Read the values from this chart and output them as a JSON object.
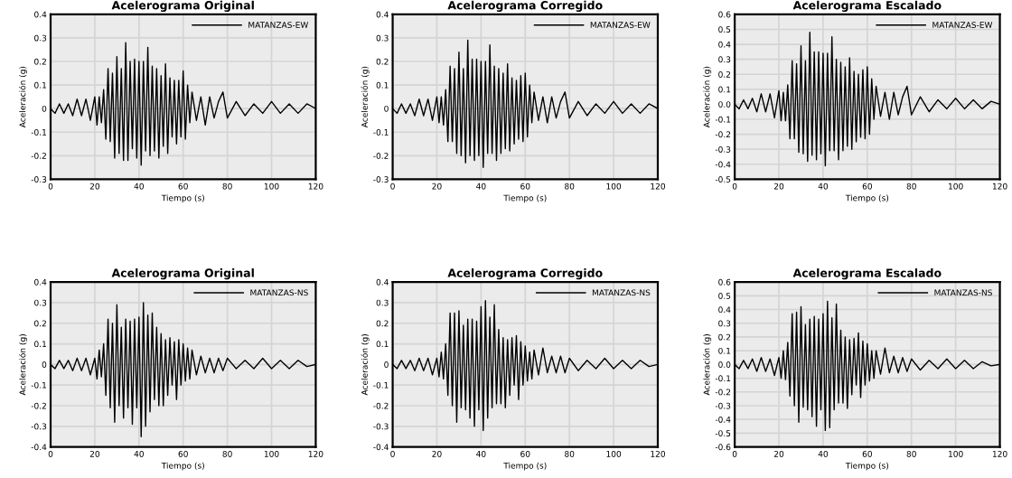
{
  "chart_data": [
    {
      "type": "line",
      "title": "Acelerograma Original",
      "xlabel": "Tiempo (s)",
      "ylabel": "Aceleración (g)",
      "xlim": [
        0,
        120
      ],
      "xticks": [
        0,
        20,
        40,
        60,
        80,
        100,
        120
      ],
      "ylim": [
        -0.3,
        0.4
      ],
      "yticks": [
        -0.3,
        -0.2,
        -0.1,
        0,
        0.1,
        0.2,
        0.3,
        0.4
      ],
      "grid": true,
      "legend": "top right",
      "x": [
        0,
        2,
        4,
        6,
        8,
        10,
        12,
        14,
        16,
        18,
        20,
        21,
        22,
        23,
        24,
        25,
        26,
        27,
        28,
        29,
        30,
        31,
        32,
        33,
        34,
        35,
        36,
        37,
        38,
        39,
        40,
        41,
        42,
        43,
        44,
        45,
        46,
        47,
        48,
        49,
        50,
        51,
        52,
        53,
        54,
        55,
        56,
        57,
        58,
        59,
        60,
        61,
        62,
        63,
        64,
        66,
        68,
        70,
        72,
        74,
        76,
        78,
        80,
        84,
        88,
        92,
        96,
        100,
        104,
        108,
        112,
        116,
        120
      ],
      "series": [
        {
          "name": "MATANZAS-EW",
          "color": "#000000",
          "values": [
            0,
            -0.02,
            0.02,
            -0.02,
            0.02,
            -0.03,
            0.04,
            -0.03,
            0.04,
            -0.05,
            0.05,
            -0.07,
            0.05,
            -0.06,
            0.08,
            -0.13,
            0.17,
            -0.14,
            0.15,
            -0.21,
            0.22,
            -0.19,
            0.17,
            -0.22,
            0.28,
            -0.22,
            0.2,
            -0.17,
            0.21,
            -0.21,
            0.2,
            -0.24,
            0.2,
            -0.18,
            0.26,
            -0.2,
            0.18,
            -0.18,
            0.17,
            -0.21,
            0.14,
            -0.16,
            0.19,
            -0.19,
            0.13,
            -0.12,
            0.12,
            -0.15,
            0.12,
            -0.12,
            0.16,
            -0.13,
            0.1,
            -0.06,
            0.07,
            -0.05,
            0.05,
            -0.07,
            0.05,
            -0.04,
            0.03,
            0.07,
            -0.04,
            0.03,
            -0.03,
            0.02,
            -0.02,
            0.03,
            -0.02,
            0.02,
            -0.02,
            0.02,
            0
          ]
        }
      ]
    },
    {
      "type": "line",
      "title": "Acelerograma Corregido",
      "xlabel": "Tiempo (s)",
      "ylabel": "Aceleración (g)",
      "xlim": [
        0,
        120
      ],
      "xticks": [
        0,
        20,
        40,
        60,
        80,
        100,
        120
      ],
      "ylim": [
        -0.3,
        0.4
      ],
      "yticks": [
        -0.3,
        -0.2,
        -0.1,
        0,
        0.1,
        0.2,
        0.3,
        0.4
      ],
      "grid": true,
      "legend": "top right",
      "x": [
        0,
        2,
        4,
        6,
        8,
        10,
        12,
        14,
        16,
        18,
        20,
        21,
        22,
        23,
        24,
        25,
        26,
        27,
        28,
        29,
        30,
        31,
        32,
        33,
        34,
        35,
        36,
        37,
        38,
        39,
        40,
        41,
        42,
        43,
        44,
        45,
        46,
        47,
        48,
        49,
        50,
        51,
        52,
        53,
        54,
        55,
        56,
        57,
        58,
        59,
        60,
        61,
        62,
        63,
        64,
        66,
        68,
        70,
        72,
        74,
        76,
        78,
        80,
        84,
        88,
        92,
        96,
        100,
        104,
        108,
        112,
        116,
        120
      ],
      "series": [
        {
          "name": "MATANZAS-EW",
          "color": "#000000",
          "values": [
            0,
            -0.02,
            0.02,
            -0.02,
            0.02,
            -0.03,
            0.04,
            -0.03,
            0.04,
            -0.05,
            0.05,
            -0.06,
            0.05,
            -0.07,
            0.08,
            -0.14,
            0.18,
            -0.14,
            0.17,
            -0.19,
            0.24,
            -0.2,
            0.17,
            -0.23,
            0.29,
            -0.2,
            0.21,
            -0.22,
            0.21,
            -0.2,
            0.2,
            -0.25,
            0.2,
            -0.19,
            0.27,
            -0.19,
            0.18,
            -0.22,
            0.17,
            -0.19,
            0.15,
            -0.17,
            0.19,
            -0.18,
            0.13,
            -0.15,
            0.12,
            -0.13,
            0.14,
            -0.14,
            0.15,
            -0.12,
            0.1,
            -0.06,
            0.07,
            -0.05,
            0.05,
            -0.06,
            0.05,
            -0.04,
            0.03,
            0.07,
            -0.04,
            0.03,
            -0.03,
            0.02,
            -0.02,
            0.03,
            -0.02,
            0.02,
            -0.02,
            0.02,
            0
          ]
        }
      ]
    },
    {
      "type": "line",
      "title": "Acelerograma Escalado",
      "xlabel": "Tiempo (s)",
      "ylabel": "Aceleración (g)",
      "xlim": [
        0,
        120
      ],
      "xticks": [
        0,
        20,
        40,
        60,
        80,
        100,
        120
      ],
      "ylim": [
        -0.5,
        0.6
      ],
      "yticks": [
        -0.5,
        -0.4,
        -0.3,
        -0.2,
        -0.1,
        {
          "value": 0,
          "label": "0.0"
        },
        0.1,
        0.2,
        0.3,
        0.4,
        0.5,
        0.6
      ],
      "grid": true,
      "legend": "top right",
      "x": [
        0,
        2,
        4,
        6,
        8,
        10,
        12,
        14,
        16,
        18,
        20,
        21,
        22,
        23,
        24,
        25,
        26,
        27,
        28,
        29,
        30,
        31,
        32,
        33,
        34,
        35,
        36,
        37,
        38,
        39,
        40,
        41,
        42,
        43,
        44,
        45,
        46,
        47,
        48,
        49,
        50,
        51,
        52,
        53,
        54,
        55,
        56,
        57,
        58,
        59,
        60,
        61,
        62,
        63,
        64,
        66,
        68,
        70,
        72,
        74,
        76,
        78,
        80,
        84,
        88,
        92,
        96,
        100,
        104,
        108,
        112,
        116,
        120
      ],
      "series": [
        {
          "name": "MATANZAS-EW",
          "color": "#000000",
          "values": [
            0,
            -0.03,
            0.03,
            -0.03,
            0.04,
            -0.05,
            0.07,
            -0.05,
            0.07,
            -0.09,
            0.09,
            -0.11,
            0.08,
            -0.11,
            0.13,
            -0.23,
            0.29,
            -0.23,
            0.27,
            -0.32,
            0.39,
            -0.33,
            0.29,
            -0.38,
            0.48,
            -0.34,
            0.35,
            -0.37,
            0.35,
            -0.33,
            0.34,
            -0.41,
            0.34,
            -0.31,
            0.45,
            -0.31,
            0.3,
            -0.37,
            0.28,
            -0.31,
            0.25,
            -0.28,
            0.31,
            -0.3,
            0.22,
            -0.25,
            0.2,
            -0.22,
            0.23,
            -0.23,
            0.25,
            -0.2,
            0.17,
            -0.1,
            0.12,
            -0.08,
            0.08,
            -0.1,
            0.08,
            -0.07,
            0.05,
            0.12,
            -0.07,
            0.05,
            -0.05,
            0.03,
            -0.03,
            0.04,
            -0.03,
            0.03,
            -0.03,
            0.02,
            0
          ]
        }
      ]
    },
    {
      "type": "line",
      "title": "Acelerograma Original",
      "xlabel": "Tiempo (s)",
      "ylabel": "Aceleración (g)",
      "xlim": [
        0,
        120
      ],
      "xticks": [
        0,
        20,
        40,
        60,
        80,
        100,
        120
      ],
      "ylim": [
        -0.4,
        0.4
      ],
      "yticks": [
        -0.4,
        -0.3,
        -0.2,
        -0.1,
        0,
        0.1,
        0.2,
        0.3,
        0.4
      ],
      "grid": true,
      "legend": "top right",
      "x": [
        0,
        2,
        4,
        6,
        8,
        10,
        12,
        14,
        16,
        18,
        20,
        21,
        22,
        23,
        24,
        25,
        26,
        27,
        28,
        29,
        30,
        31,
        32,
        33,
        34,
        35,
        36,
        37,
        38,
        39,
        40,
        41,
        42,
        43,
        44,
        45,
        46,
        47,
        48,
        49,
        50,
        51,
        52,
        53,
        54,
        55,
        56,
        57,
        58,
        59,
        60,
        61,
        62,
        63,
        64,
        66,
        68,
        70,
        72,
        74,
        76,
        78,
        80,
        84,
        88,
        92,
        96,
        100,
        104,
        108,
        112,
        116,
        120
      ],
      "series": [
        {
          "name": "MATANZAS-NS",
          "color": "#000000",
          "values": [
            0,
            -0.02,
            0.02,
            -0.02,
            0.02,
            -0.03,
            0.03,
            -0.03,
            0.03,
            -0.05,
            0.03,
            -0.07,
            0.07,
            -0.06,
            0.1,
            -0.15,
            0.22,
            -0.21,
            0.2,
            -0.28,
            0.29,
            -0.2,
            0.18,
            -0.26,
            0.22,
            -0.21,
            0.21,
            -0.29,
            0.22,
            -0.21,
            0.23,
            -0.35,
            0.3,
            -0.3,
            0.24,
            -0.23,
            0.25,
            -0.17,
            0.18,
            -0.2,
            0.15,
            -0.2,
            0.12,
            -0.15,
            0.13,
            -0.1,
            0.11,
            -0.17,
            0.12,
            -0.1,
            0.1,
            -0.08,
            0.08,
            -0.07,
            0.07,
            -0.05,
            0.04,
            -0.04,
            0.03,
            -0.04,
            0.03,
            -0.03,
            0.03,
            -0.02,
            0.02,
            -0.02,
            0.03,
            -0.02,
            0.02,
            -0.02,
            0.02,
            -0.01,
            0
          ]
        }
      ]
    },
    {
      "type": "line",
      "title": "Acelerograma Corregido",
      "xlabel": "Tiempo (s)",
      "ylabel": "Aceleración (g)",
      "xlim": [
        0,
        120
      ],
      "xticks": [
        0,
        20,
        40,
        60,
        80,
        100,
        120
      ],
      "ylim": [
        -0.4,
        0.4
      ],
      "yticks": [
        -0.4,
        -0.3,
        -0.2,
        -0.1,
        0,
        0.1,
        0.2,
        0.3,
        0.4
      ],
      "grid": true,
      "legend": "top right",
      "x": [
        0,
        2,
        4,
        6,
        8,
        10,
        12,
        14,
        16,
        18,
        20,
        21,
        22,
        23,
        24,
        25,
        26,
        27,
        28,
        29,
        30,
        31,
        32,
        33,
        34,
        35,
        36,
        37,
        38,
        39,
        40,
        41,
        42,
        43,
        44,
        45,
        46,
        47,
        48,
        49,
        50,
        51,
        52,
        53,
        54,
        55,
        56,
        57,
        58,
        59,
        60,
        61,
        62,
        63,
        64,
        66,
        68,
        70,
        72,
        74,
        76,
        78,
        80,
        84,
        88,
        92,
        96,
        100,
        104,
        108,
        112,
        116,
        120
      ],
      "series": [
        {
          "name": "MATANZAS-NS",
          "color": "#000000",
          "values": [
            0,
            -0.02,
            0.02,
            -0.02,
            0.02,
            -0.03,
            0.03,
            -0.03,
            0.03,
            -0.05,
            0.03,
            -0.06,
            0.06,
            -0.07,
            0.1,
            -0.15,
            0.25,
            -0.2,
            0.25,
            -0.28,
            0.26,
            -0.21,
            0.19,
            -0.22,
            0.22,
            -0.26,
            0.22,
            -0.3,
            0.21,
            -0.22,
            0.28,
            -0.32,
            0.31,
            -0.26,
            0.23,
            -0.21,
            0.29,
            -0.19,
            0.17,
            -0.19,
            0.13,
            -0.21,
            0.12,
            -0.15,
            0.13,
            -0.1,
            0.14,
            -0.17,
            0.11,
            -0.1,
            0.09,
            -0.08,
            0.06,
            -0.07,
            0.07,
            -0.05,
            0.08,
            -0.04,
            0.04,
            -0.04,
            0.04,
            -0.04,
            0.03,
            -0.03,
            0.02,
            -0.02,
            0.03,
            -0.02,
            0.02,
            -0.02,
            0.02,
            -0.01,
            0
          ]
        }
      ]
    },
    {
      "type": "line",
      "title": "Acelerograma Escalado",
      "xlabel": "Tiempo (s)",
      "ylabel": "Aceleración (g)",
      "xlim": [
        0,
        120
      ],
      "xticks": [
        0,
        20,
        40,
        60,
        80,
        100,
        120
      ],
      "ylim": [
        -0.6,
        0.6
      ],
      "yticks": [
        -0.6,
        -0.5,
        -0.4,
        -0.3,
        -0.2,
        -0.1,
        {
          "value": 0,
          "label": "0.0"
        },
        0.1,
        0.2,
        0.3,
        0.4,
        0.5,
        0.6
      ],
      "grid": true,
      "legend": "top right",
      "x": [
        0,
        2,
        4,
        6,
        8,
        10,
        12,
        14,
        16,
        18,
        20,
        21,
        22,
        23,
        24,
        25,
        26,
        27,
        28,
        29,
        30,
        31,
        32,
        33,
        34,
        35,
        36,
        37,
        38,
        39,
        40,
        41,
        42,
        43,
        44,
        45,
        46,
        47,
        48,
        49,
        50,
        51,
        52,
        53,
        54,
        55,
        56,
        57,
        58,
        59,
        60,
        61,
        62,
        63,
        64,
        66,
        68,
        70,
        72,
        74,
        76,
        78,
        80,
        84,
        88,
        92,
        96,
        100,
        104,
        108,
        112,
        116,
        120
      ],
      "series": [
        {
          "name": "MATANZAS-NS",
          "color": "#000000",
          "values": [
            0,
            -0.03,
            0.03,
            -0.03,
            0.04,
            -0.05,
            0.05,
            -0.05,
            0.04,
            -0.08,
            0.05,
            -0.1,
            0.1,
            -0.11,
            0.16,
            -0.23,
            0.37,
            -0.3,
            0.38,
            -0.42,
            0.42,
            -0.31,
            0.29,
            -0.33,
            0.33,
            -0.38,
            0.35,
            -0.45,
            0.33,
            -0.33,
            0.37,
            -0.48,
            0.46,
            -0.46,
            0.34,
            -0.33,
            0.44,
            -0.28,
            0.25,
            -0.28,
            0.2,
            -0.32,
            0.18,
            -0.22,
            0.19,
            -0.15,
            0.23,
            -0.24,
            0.17,
            -0.15,
            0.15,
            -0.12,
            0.1,
            -0.1,
            0.1,
            -0.07,
            0.12,
            -0.06,
            0.06,
            -0.06,
            0.05,
            -0.05,
            0.04,
            -0.04,
            0.03,
            -0.03,
            0.04,
            -0.03,
            0.03,
            -0.03,
            0.02,
            -0.01,
            0
          ]
        }
      ]
    }
  ]
}
